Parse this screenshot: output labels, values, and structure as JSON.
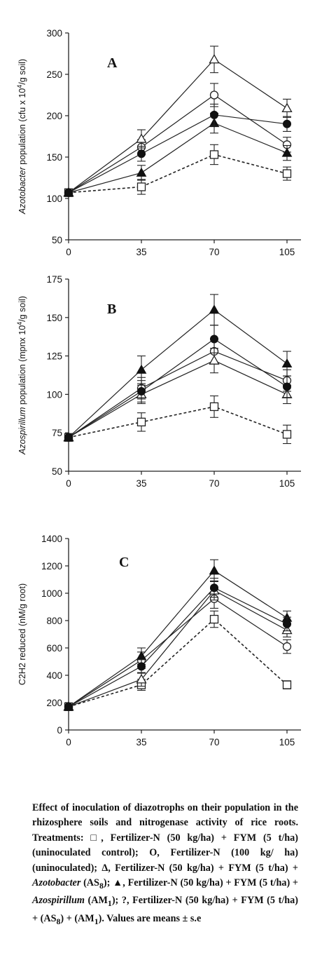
{
  "chart_data": [
    {
      "type": "line",
      "panel_label": "A",
      "ylabel_italic": "Azotobacter",
      "ylabel_rest": " population (cfu x 10",
      "ylabel_sup": "4",
      "ylabel_end": "/g soil)",
      "ylim": [
        50,
        300
      ],
      "yticks": [
        "50",
        "100",
        "150",
        "200",
        "250",
        "300"
      ],
      "x": [
        0,
        35,
        70,
        105
      ],
      "xticks": [
        "0",
        "35",
        "70",
        "105"
      ],
      "grid": false,
      "series": [
        {
          "marker": "square-open",
          "line": "dashed",
          "values": [
            107,
            114,
            153,
            130
          ],
          "err": [
            0,
            9,
            12,
            8
          ]
        },
        {
          "marker": "circle-open",
          "line": "solid",
          "values": [
            107,
            162,
            225,
            165
          ],
          "err": [
            0,
            9,
            14,
            9
          ]
        },
        {
          "marker": "triangle-open",
          "line": "solid",
          "values": [
            107,
            172,
            268,
            209
          ],
          "err": [
            0,
            11,
            16,
            11
          ]
        },
        {
          "marker": "triangle-filled",
          "line": "solid",
          "values": [
            107,
            131,
            191,
            155
          ],
          "err": [
            0,
            9,
            12,
            9
          ]
        },
        {
          "marker": "circle-filled",
          "line": "solid",
          "values": [
            107,
            154,
            201,
            190
          ],
          "err": [
            0,
            9,
            13,
            9
          ]
        }
      ]
    },
    {
      "type": "line",
      "panel_label": "B",
      "ylabel_italic": "Azospirillum",
      "ylabel_rest": " population (mpnx 10",
      "ylabel_sup": "4",
      "ylabel_end": "/g soil)",
      "ylim": [
        50,
        175
      ],
      "yticks": [
        "50",
        "75",
        "100",
        "125",
        "150",
        "175"
      ],
      "x": [
        0,
        35,
        70,
        105
      ],
      "xticks": [
        "0",
        "35",
        "70",
        "105"
      ],
      "grid": false,
      "series": [
        {
          "marker": "square-open",
          "line": "dashed",
          "values": [
            72,
            82,
            92,
            74
          ],
          "err": [
            0,
            6,
            7,
            6
          ]
        },
        {
          "marker": "circle-open",
          "line": "solid",
          "values": [
            72,
            104,
            128,
            109
          ],
          "err": [
            0,
            7,
            8,
            7
          ]
        },
        {
          "marker": "triangle-open",
          "line": "solid",
          "values": [
            72,
            100,
            122,
            100
          ],
          "err": [
            0,
            6,
            8,
            6
          ]
        },
        {
          "marker": "triangle-filled",
          "line": "solid",
          "values": [
            72,
            116,
            155,
            120
          ],
          "err": [
            0,
            9,
            10,
            8
          ]
        },
        {
          "marker": "circle-filled",
          "line": "solid",
          "values": [
            72,
            102,
            136,
            105
          ],
          "err": [
            0,
            7,
            9,
            7
          ]
        }
      ]
    },
    {
      "type": "line",
      "panel_label": "C",
      "ylabel_italic": "",
      "ylabel_rest": "C2H2 reduced (nM/g root)",
      "ylabel_sup": "",
      "ylabel_end": "",
      "ylim": [
        0,
        1400
      ],
      "yticks": [
        "0",
        "200",
        "400",
        "600",
        "800",
        "1000",
        "1200",
        "1400"
      ],
      "x": [
        0,
        35,
        70,
        105
      ],
      "xticks": [
        "0",
        "35",
        "70",
        "105"
      ],
      "grid": false,
      "series": [
        {
          "marker": "square-open",
          "line": "dashed",
          "values": [
            170,
            330,
            810,
            330
          ],
          "err": [
            0,
            40,
            60,
            30
          ]
        },
        {
          "marker": "circle-open",
          "line": "solid",
          "values": [
            170,
            510,
            960,
            610
          ],
          "err": [
            0,
            60,
            70,
            50
          ]
        },
        {
          "marker": "triangle-open",
          "line": "solid",
          "values": [
            170,
            370,
            1020,
            730
          ],
          "err": [
            0,
            50,
            70,
            50
          ]
        },
        {
          "marker": "triangle-filled",
          "line": "solid",
          "values": [
            170,
            540,
            1165,
            820
          ],
          "err": [
            0,
            60,
            80,
            50
          ]
        },
        {
          "marker": "circle-filled",
          "line": "solid",
          "values": [
            170,
            465,
            1040,
            775
          ],
          "err": [
            0,
            50,
            70,
            50
          ]
        }
      ]
    }
  ],
  "caption": {
    "p1": "Effect of inoculation of diazotrophs on their population in the rhizosphere soils and nitrogenase activity of rice roots. Treatments: ",
    "sq": "□",
    "p2": ", Fertilizer-N (50 kg/ha) + FYM (5 t/ha) (uninoculated control); ",
    "ci": "O,",
    "p3": " Fertilizer-N (100 kg/ ha) (uninoculated); ",
    "tri": "Δ,",
    "p4": " Fertilizer-N (50 kg/ha) + FYM (5 t/ha) + ",
    "azotobacter": "Azotobacter",
    "p5": " (AS",
    "sub8": "8",
    "p6": "); ",
    "ftri": "▲,",
    "p7": " Fertilizer-N (50 kg/ha) + FYM (5 t/ha) + ",
    "azospirillum": "Azospirillum",
    "p8": " (AM",
    "sub1": "1",
    "p9": "); ?, Fertilizer-N (50 kg/ha) + FYM (5 t/ha) + (AS",
    "sub8b": "8",
    "p10": ") + (AM",
    "sub1b": "1",
    "p11": "). Values are means ± s.e"
  }
}
